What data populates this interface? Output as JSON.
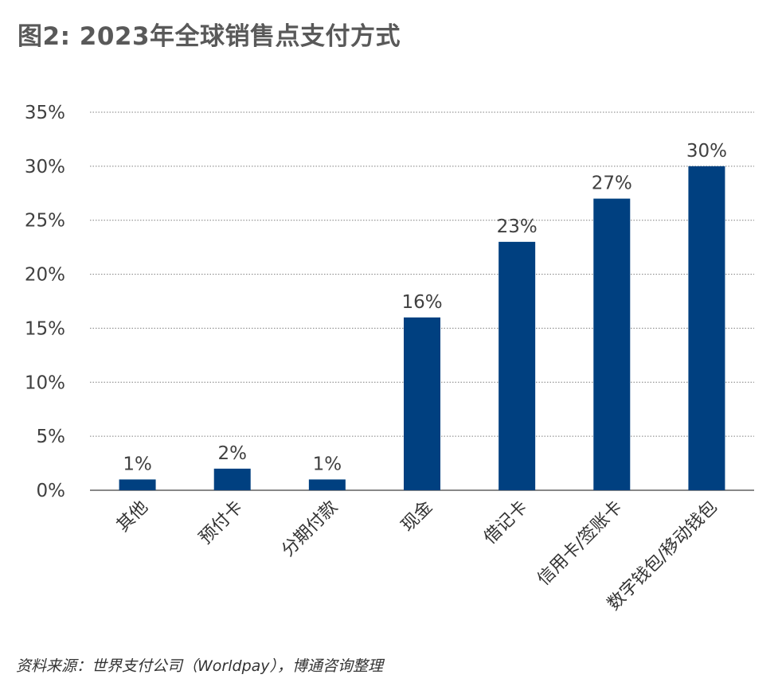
{
  "title": "图2: 2023年全球销售点支付方式",
  "source": "资料来源：世界支付公司（Worldpay），博通咨询整理",
  "chart_data": {
    "type": "bar",
    "categories": [
      "其他",
      "预付卡",
      "分期付款",
      "现金",
      "借记卡",
      "信用卡/签账卡",
      "数字钱包/移动钱包"
    ],
    "values": [
      1,
      2,
      1,
      16,
      23,
      27,
      30
    ],
    "data_labels": [
      "1%",
      "2%",
      "1%",
      "16%",
      "23%",
      "27%",
      "30%"
    ],
    "ylim": [
      0,
      35
    ],
    "yticks": [
      0,
      5,
      10,
      15,
      20,
      25,
      30,
      35
    ],
    "ytick_labels": [
      "0%",
      "5%",
      "10%",
      "15%",
      "20%",
      "25%",
      "30%",
      "35%"
    ],
    "grid": true,
    "bar_color": "#004080",
    "grid_color": "#7f7f7f"
  }
}
